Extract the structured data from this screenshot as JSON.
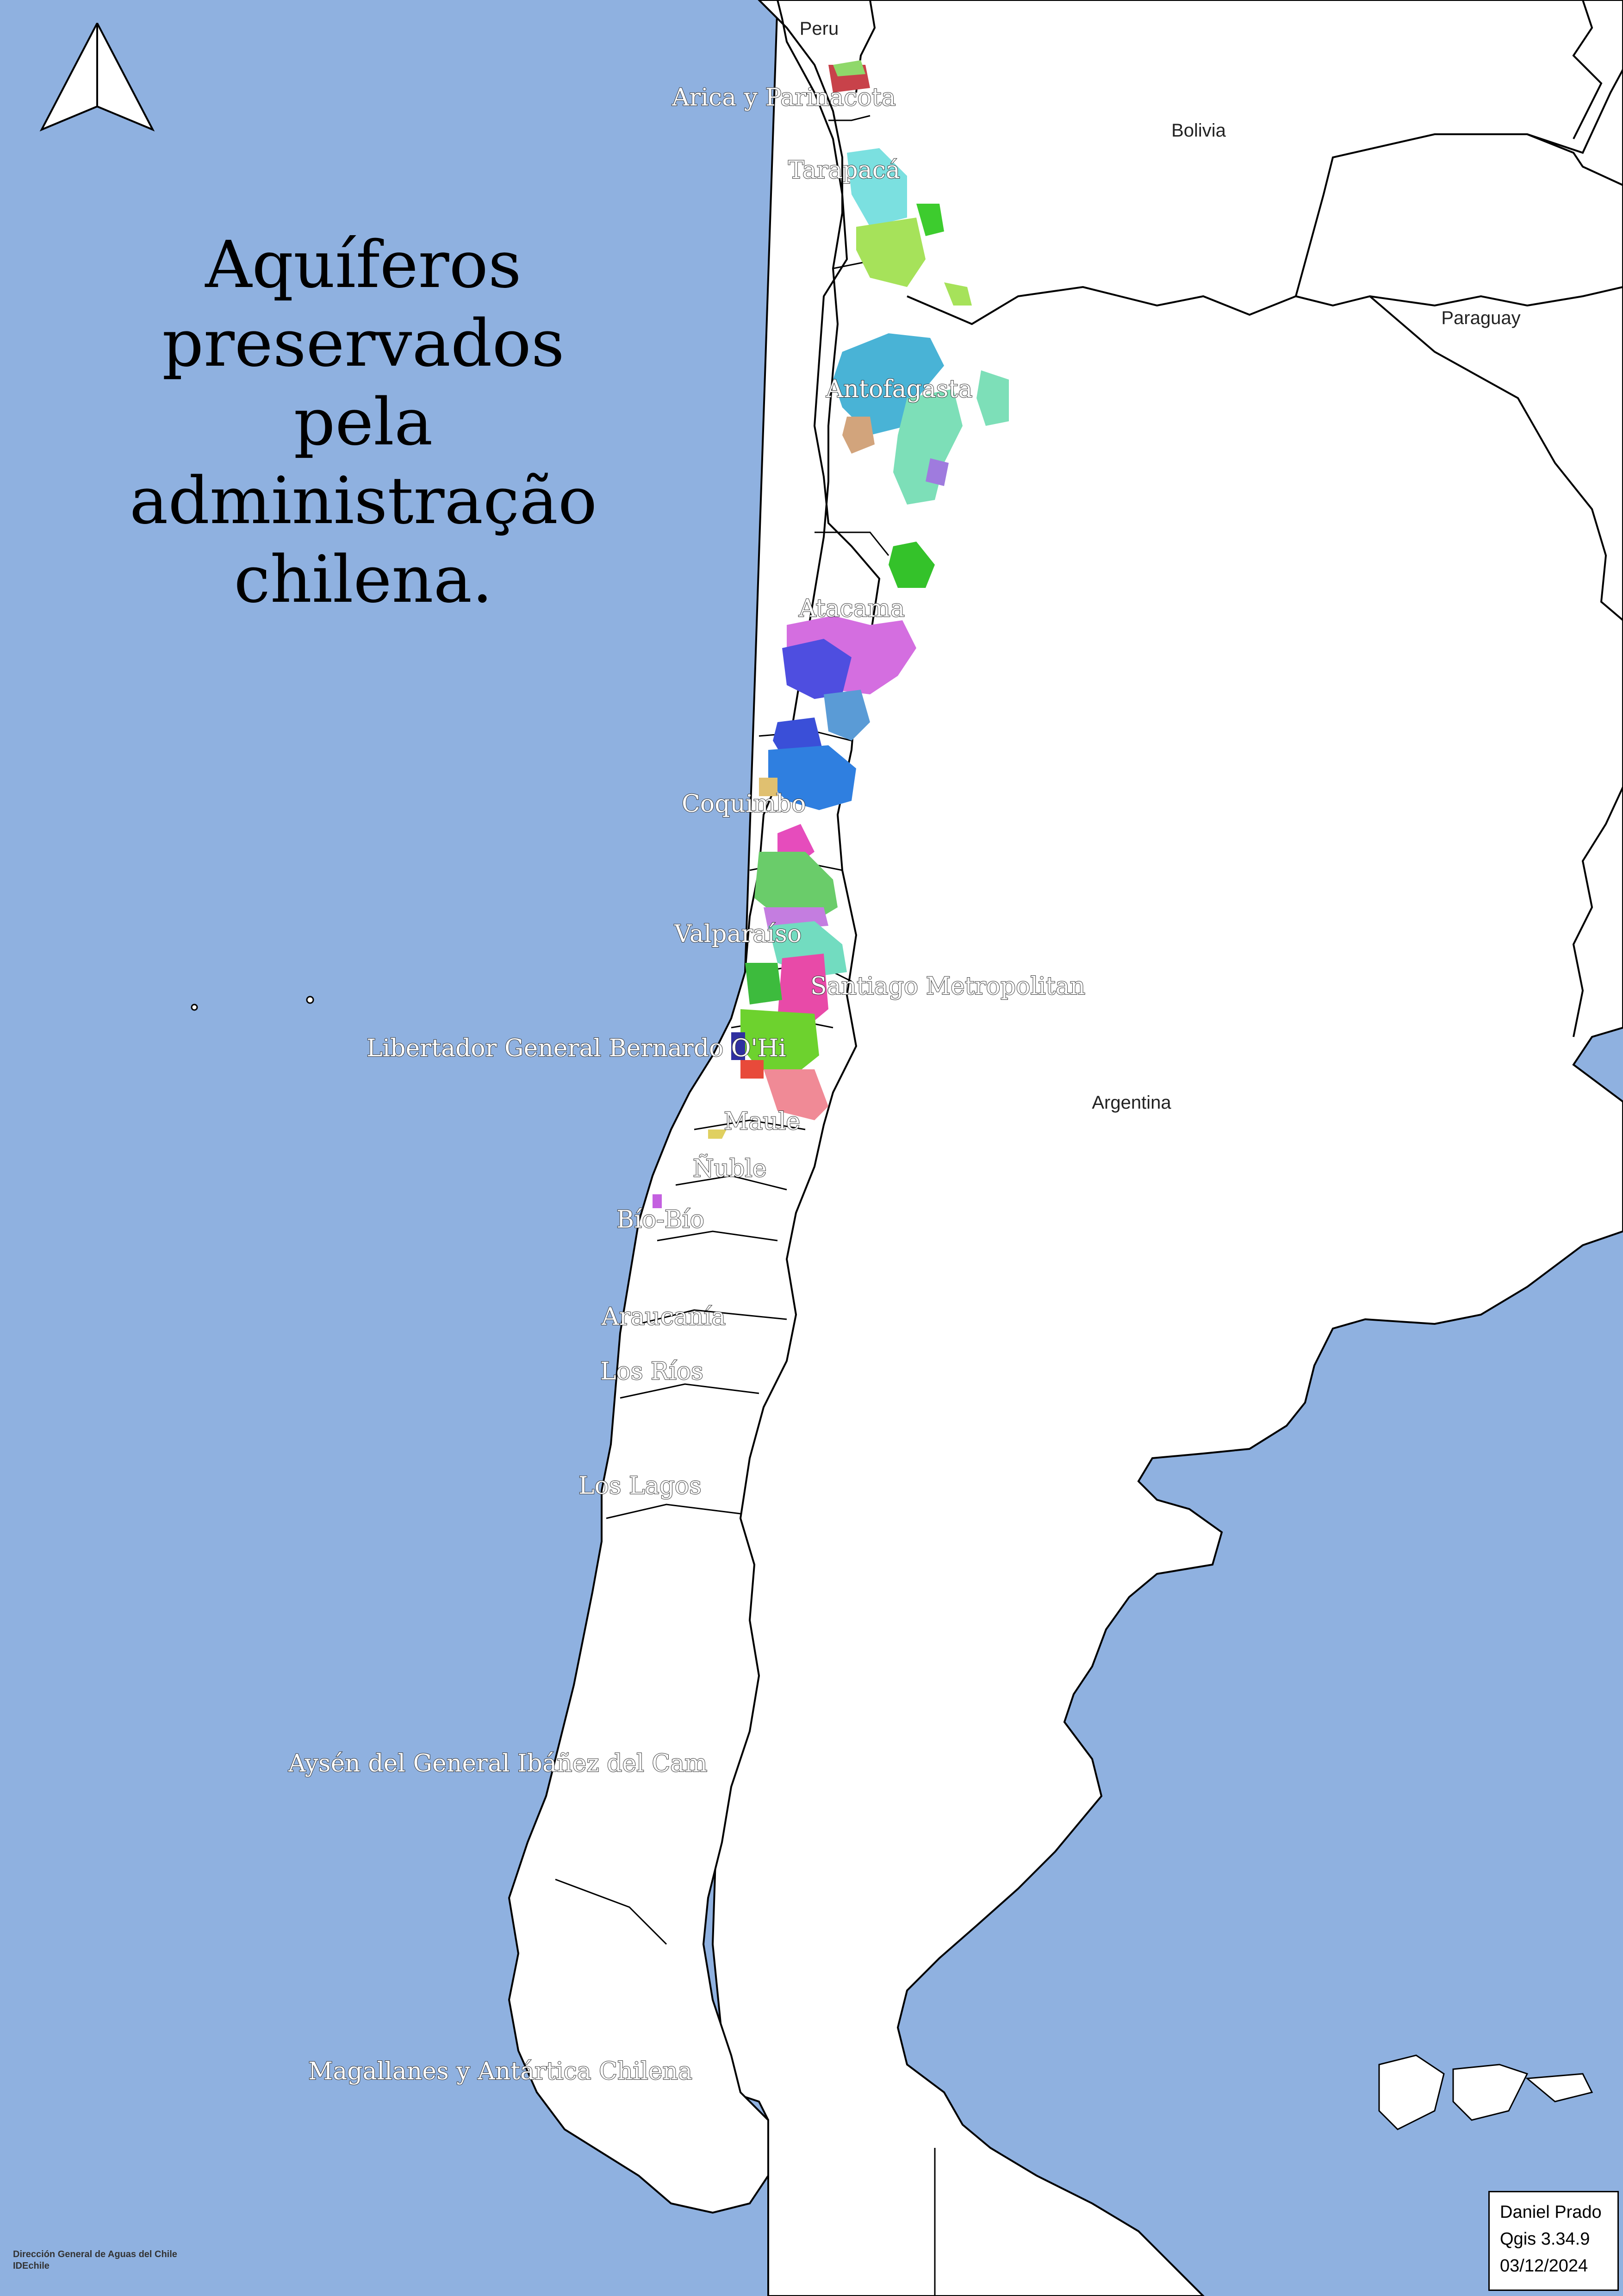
{
  "title": {
    "lines": [
      "Aquíferos",
      "preservados",
      "pela",
      "administração",
      "chilena."
    ]
  },
  "countries": {
    "peru": "Peru",
    "bolivia": "Bolivia",
    "paraguay": "Paraguay",
    "argentina": "Argentina"
  },
  "regions": [
    "Arica y Parinacota",
    "Tarapacá",
    "Antofagasta",
    "Atacama",
    "Coquimbo",
    "Valparaíso",
    "Santiago Metropolitan",
    "Libertador General Bernardo O'Hi",
    "Maule",
    "Ñuble",
    "Bío-Bío",
    "Araucanía",
    "Los Ríos",
    "Los Lagos",
    "Aysén del General Ibáñez del Cam",
    "Magallanes y Antártica Chilena"
  ],
  "credits": {
    "author": "Daniel Prado",
    "software": "Qgis 3.34.9",
    "date": "03/12/2024"
  },
  "source": {
    "line1": "Dirección General de Aguas del Chile",
    "line2": "IDEchile"
  },
  "colors": {
    "sea": "#8fb1e0",
    "land": "#ffffff",
    "border": "#000000"
  },
  "icons": {
    "north_arrow": "north-arrow-icon"
  }
}
